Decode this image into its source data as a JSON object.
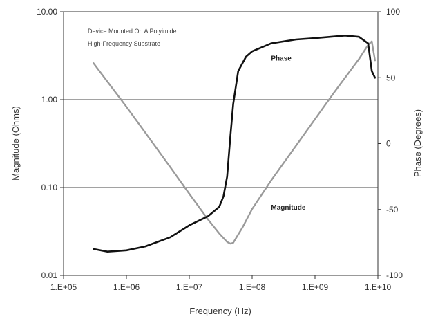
{
  "chart_data": {
    "type": "line",
    "title": "",
    "xlabel": "Frequency (Hz)",
    "ylabel_left": "Magnitude (Ohms)",
    "ylabel_right": "Phase (Degrees)",
    "x_scale": "log",
    "xlim": [
      100000,
      10000000000
    ],
    "ylim_left": [
      0.01,
      10
    ],
    "left_scale": "log",
    "ylim_right": [
      -100,
      100
    ],
    "right_scale": "linear",
    "x_ticks": [
      "1.E+05",
      "1.E+06",
      "1.E+07",
      "1.E+08",
      "1.E+09",
      "1.E+10"
    ],
    "left_ticks": [
      "10.00",
      "1.00",
      "0.10",
      "0.01"
    ],
    "right_ticks": [
      "100",
      "50",
      "0",
      "-50",
      "-100"
    ],
    "annotation_lines": [
      "Device Mounted  On A Polyimide",
      "High-Frequency Substrate"
    ],
    "grid": "horizontal lines at 1.00 and 0.10 ohms",
    "series": [
      {
        "name": "Magnitude",
        "axis": "left",
        "color": "#9a9a9a",
        "x": [
          300000,
          500000,
          1000000,
          2000000,
          5000000,
          10000000,
          20000000,
          30000000,
          40000000,
          45000000,
          50000000,
          70000000,
          100000000,
          200000000,
          500000000,
          1000000000,
          2000000000,
          5000000000,
          7000000000,
          8000000000,
          9000000000
        ],
        "y": [
          2.6,
          1.6,
          0.83,
          0.42,
          0.17,
          0.085,
          0.043,
          0.03,
          0.024,
          0.023,
          0.0235,
          0.035,
          0.057,
          0.12,
          0.3,
          0.6,
          1.2,
          2.9,
          4.2,
          4.6,
          2.8
        ]
      },
      {
        "name": "Phase",
        "axis": "right",
        "color": "#111111",
        "x": [
          300000,
          500000,
          1000000,
          2000000,
          5000000,
          10000000,
          20000000,
          30000000,
          35000000,
          40000000,
          45000000,
          50000000,
          60000000,
          80000000,
          100000000,
          200000000,
          500000000,
          1000000000,
          3000000000,
          5000000000,
          7000000000,
          8000000000,
          9000000000
        ],
        "y": [
          -80,
          -82,
          -81,
          -78,
          -71,
          -62,
          -55,
          -48,
          -40,
          -25,
          5,
          30,
          55,
          66,
          70,
          76,
          79,
          80,
          82,
          81,
          76,
          55,
          50
        ]
      }
    ],
    "series_labels": [
      {
        "text": "Phase",
        "x": 200000000,
        "y": 63,
        "axis": "right"
      },
      {
        "text": "Magnitude",
        "x": 200000000,
        "y": -50,
        "axis": "right"
      }
    ]
  }
}
